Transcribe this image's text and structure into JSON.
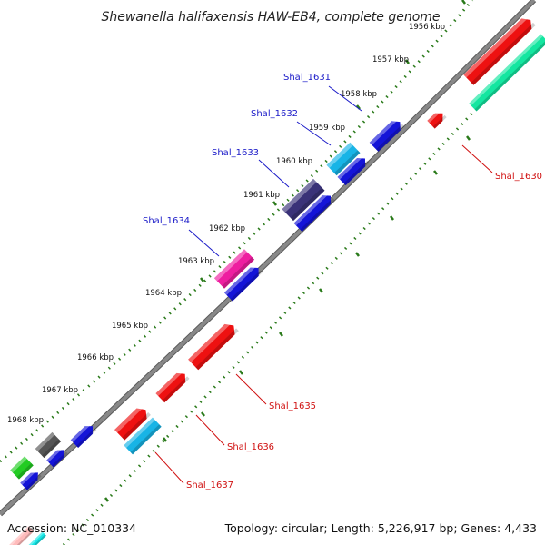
{
  "title": "Shewanella halifaxensis HAW-EB4, complete genome",
  "footer": {
    "accession": "Accession: NC_010334",
    "summary": "Topology: circular; Length: 5,226,917 bp; Genes: 4,433"
  },
  "colors": {
    "backbone": "#888888",
    "ticks": "#2a7a1a",
    "label_forward": "#1a1ac8",
    "label_reverse": "#d01010"
  },
  "kbp_ticks": [
    "1956 kbp",
    "1957 kbp",
    "1958 kbp",
    "1959 kbp",
    "1960 kbp",
    "1961 kbp",
    "1962 kbp",
    "1963 kbp",
    "1964 kbp",
    "1965 kbp",
    "1966 kbp",
    "1967 kbp",
    "1968 kbp"
  ],
  "gene_labels": [
    {
      "text": "Shal_1631",
      "strand": "forward"
    },
    {
      "text": "Shal_1632",
      "strand": "forward"
    },
    {
      "text": "Shal_1633",
      "strand": "forward"
    },
    {
      "text": "Shal_1634",
      "strand": "forward"
    },
    {
      "text": "Shal_1630",
      "strand": "reverse"
    },
    {
      "text": "Shal_1635",
      "strand": "reverse"
    },
    {
      "text": "Shal_1636",
      "strand": "reverse"
    },
    {
      "text": "Shal_1637",
      "strand": "reverse"
    }
  ],
  "feature_colors": {
    "red": "#ee1111",
    "blue": "#1414d8",
    "teal": "#14e6a0",
    "cyan": "#18b4e6",
    "purple": "#3a3278",
    "magenta": "#ee1ea0",
    "gray": "#555555",
    "green": "#22cc22"
  }
}
